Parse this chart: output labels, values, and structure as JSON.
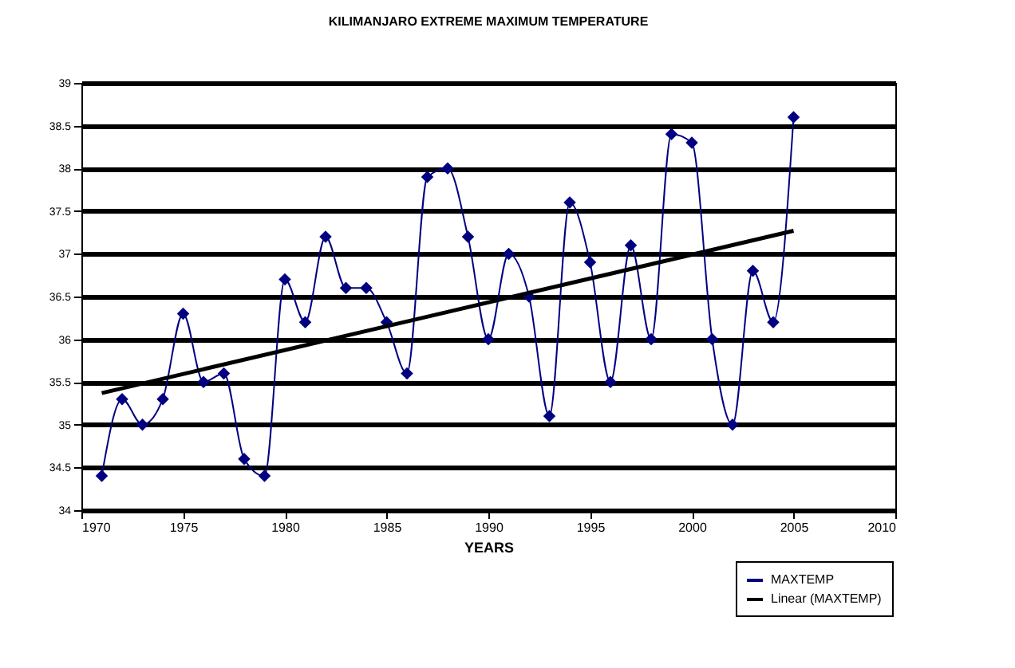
{
  "chart_data": {
    "type": "line",
    "title": "KILIMANJARO EXTREME MAXIMUM TEMPERATURE",
    "xlabel": "YEARS",
    "x": [
      1971,
      1972,
      1973,
      1974,
      1975,
      1976,
      1977,
      1978,
      1979,
      1980,
      1981,
      1982,
      1983,
      1984,
      1985,
      1986,
      1987,
      1988,
      1989,
      1990,
      1991,
      1992,
      1993,
      1994,
      1995,
      1996,
      1997,
      1998,
      1999,
      2000,
      2001,
      2002,
      2003,
      2004,
      2005
    ],
    "series": [
      {
        "name": "MAXTEMP",
        "color": "#000080",
        "marker": "diamond",
        "values": [
          34.4,
          35.3,
          35.0,
          35.3,
          36.3,
          35.5,
          35.6,
          34.6,
          34.4,
          36.7,
          36.2,
          37.2,
          36.6,
          36.6,
          36.2,
          35.6,
          37.9,
          38.0,
          37.2,
          36.0,
          37.0,
          36.5,
          35.1,
          37.6,
          36.9,
          35.5,
          37.1,
          36.0,
          38.4,
          38.3,
          36.0,
          35.0,
          36.8,
          36.2,
          38.6
        ]
      },
      {
        "name": "Linear (MAXTEMP)",
        "color": "#000000",
        "type": "line",
        "marker": "none",
        "x": [
          1971,
          2005
        ],
        "values": [
          35.37,
          37.27
        ]
      }
    ],
    "xlim": [
      1970,
      2010
    ],
    "xticks": [
      1970,
      1975,
      1980,
      1985,
      1990,
      1995,
      2000,
      2005,
      2010
    ],
    "ylim": [
      34,
      39
    ],
    "yticks": [
      34,
      34.5,
      35,
      35.5,
      36,
      36.5,
      37,
      37.5,
      38,
      38.5,
      39
    ],
    "grid": "y",
    "legend": "bottom right"
  }
}
